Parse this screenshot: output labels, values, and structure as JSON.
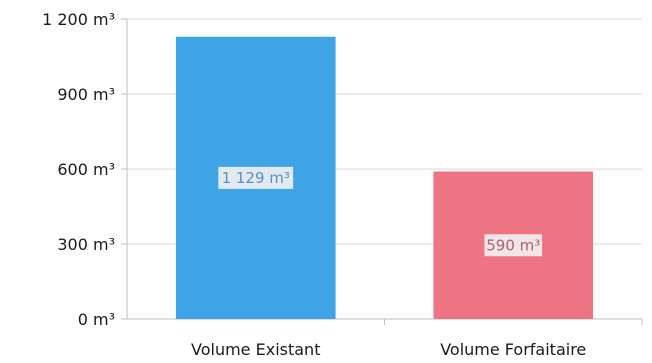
{
  "chart_data": {
    "type": "bar",
    "title": "",
    "xlabel": "",
    "ylabel": "",
    "categories": [
      "Volume Existant",
      "Volume Forfaitaire"
    ],
    "values": [
      1129,
      590
    ],
    "data_labels": [
      "1 129 m³",
      "590 m³"
    ],
    "ylim": [
      0,
      1200
    ],
    "yticks": [
      0,
      300,
      600,
      900,
      1200
    ],
    "ytick_labels": [
      "0 m³",
      "300 m³",
      "600 m³",
      "900 m³",
      "1 200 m³"
    ],
    "grid": true,
    "legend": "none",
    "colors": {
      "bars": [
        "#3ea4e6",
        "#ee7483"
      ],
      "grid": "#d9d9d9",
      "axis": "#bfbfbf",
      "label_bg": "#f0f0f0",
      "label_text": [
        "#5b8fc4",
        "#b06070"
      ]
    }
  }
}
